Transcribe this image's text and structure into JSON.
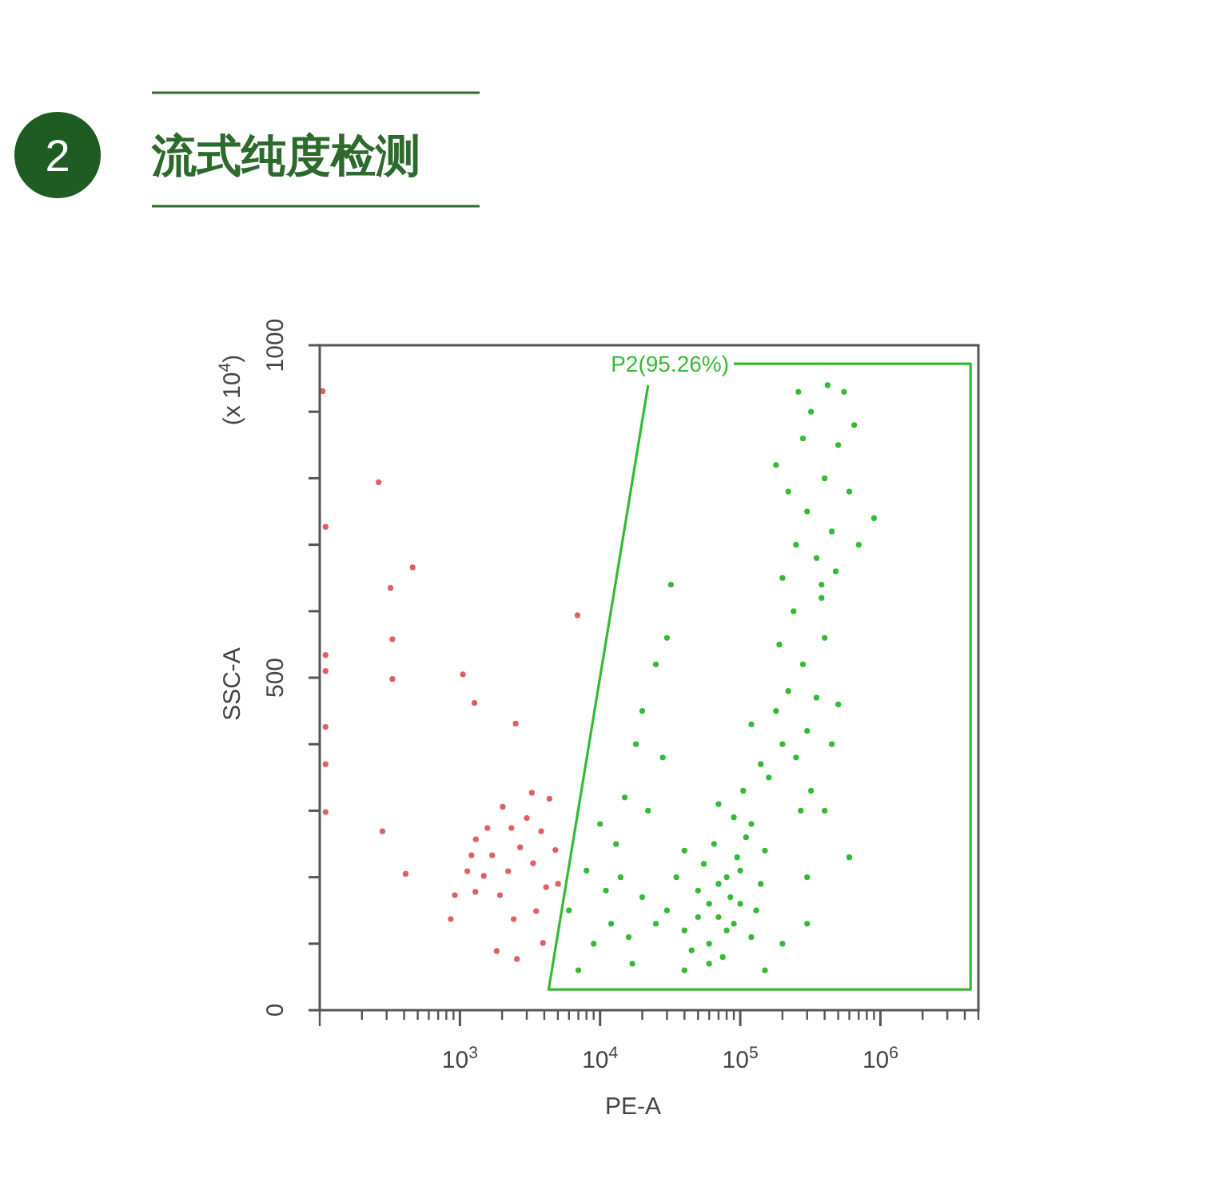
{
  "chart_data": {
    "type": "scatter",
    "title": "流式纯度检测",
    "xlabel": "PE-A",
    "ylabel": "SSC-A",
    "annotations": [
      "2",
      "(x 10$^{4}$)"
    ],
    "log": "x",
    "marker": "circle",
    "xlim": [
      100,
      5000000
    ],
    "xticks": [
      {
        "value": 1000,
        "label": "10$^{3}$"
      },
      {
        "value": 10000,
        "label": "10$^{4}$"
      },
      {
        "value": 100000,
        "label": "10$^{5}$"
      },
      {
        "value": 1000000,
        "label": "10$^{6}$"
      }
    ],
    "ylim": [
      0,
      1000
    ],
    "yticks": [
      0,
      {
        "value": 100,
        "label": null
      },
      {
        "value": 200,
        "label": null
      },
      {
        "value": 300,
        "label": null
      },
      {
        "value": 400,
        "label": null
      },
      500,
      {
        "value": 600,
        "label": null
      },
      {
        "value": 700,
        "label": null
      },
      {
        "value": 800,
        "label": null
      },
      {
        "value": 900,
        "label": null
      },
      1000
    ],
    "series": [
      {
        "color": "#e06060",
        "x": [
          110,
          110,
          110,
          110,
          110,
          110,
          105,
          263,
          320,
          460,
          330,
          330,
          1050,
          1270,
          2500,
          3260,
          6900,
          920,
          1130,
          1290,
          1480,
          1700,
          1930,
          2210,
          2420,
          2690,
          3000,
          3330,
          3800,
          4120,
          4350,
          1300,
          2020,
          860,
          1830,
          2550,
          3910,
          3500,
          1210,
          1570,
          2330,
          5020,
          4800,
          280,
          410
        ],
        "values": [
          727,
          534,
          510,
          426,
          370,
          298,
          931,
          794,
          635,
          666,
          558,
          498,
          505,
          462,
          431,
          327,
          594,
          173,
          209,
          178,
          202,
          233,
          173,
          209,
          137,
          245,
          289,
          221,
          269,
          185,
          318,
          257,
          306,
          137,
          89,
          77,
          101,
          149,
          233,
          274,
          274,
          190,
          241,
          269,
          205
        ]
      },
      {
        "color": "#33bb33",
        "x": [
          30000,
          40000,
          50000,
          60000,
          70000,
          80000,
          90000,
          100000,
          120000,
          140000,
          45000,
          55000,
          65000,
          75000,
          85000,
          95000,
          110000,
          130000,
          35000,
          25000,
          20000,
          16000,
          60000,
          70000,
          80000,
          50000,
          100000,
          120000,
          150000,
          40000,
          90000,
          70000,
          105000,
          60000,
          160000,
          200000,
          180000,
          250000,
          300000,
          220000,
          280000,
          350000,
          190000,
          240000,
          400000,
          320000,
          450000,
          140000,
          120000,
          270000,
          500000,
          380000,
          200000,
          250000,
          300000,
          350000,
          400000,
          280000,
          320000,
          450000,
          500000,
          260000,
          420000,
          550000,
          600000,
          220000,
          380000,
          700000,
          180000,
          650000,
          900000,
          480000,
          7000,
          9000,
          11000,
          13000,
          15000,
          18000,
          12000,
          8000,
          10000,
          20000,
          25000,
          30000,
          22000,
          14000,
          17000,
          28000,
          6000,
          32000,
          40000,
          150000,
          200000,
          300000,
          600000,
          400000,
          300000
        ],
        "values": [
          150,
          120,
          180,
          100,
          140,
          200,
          130,
          160,
          110,
          190,
          90,
          220,
          250,
          80,
          170,
          230,
          260,
          150,
          200,
          130,
          170,
          110,
          160,
          190,
          120,
          140,
          210,
          280,
          240,
          240,
          290,
          310,
          330,
          70,
          350,
          400,
          450,
          380,
          420,
          480,
          520,
          470,
          550,
          600,
          560,
          330,
          400,
          370,
          430,
          300,
          460,
          620,
          650,
          700,
          750,
          680,
          800,
          860,
          900,
          720,
          850,
          930,
          940,
          930,
          780,
          780,
          640,
          700,
          820,
          880,
          740,
          660,
          60,
          100,
          180,
          250,
          320,
          400,
          130,
          210,
          280,
          450,
          520,
          560,
          300,
          200,
          70,
          380,
          150,
          640,
          60,
          60,
          100,
          200,
          230,
          300,
          130
        ]
      },
      {
        "type": "line",
        "marker": "none",
        "name": "P2(95.26%)",
        "color": "#33bb33",
        "x": [
          90000,
          4400000,
          4400000,
          4300,
          22000
        ],
        "values": [
          972,
          972,
          31,
          31,
          940
        ]
      }
    ]
  }
}
